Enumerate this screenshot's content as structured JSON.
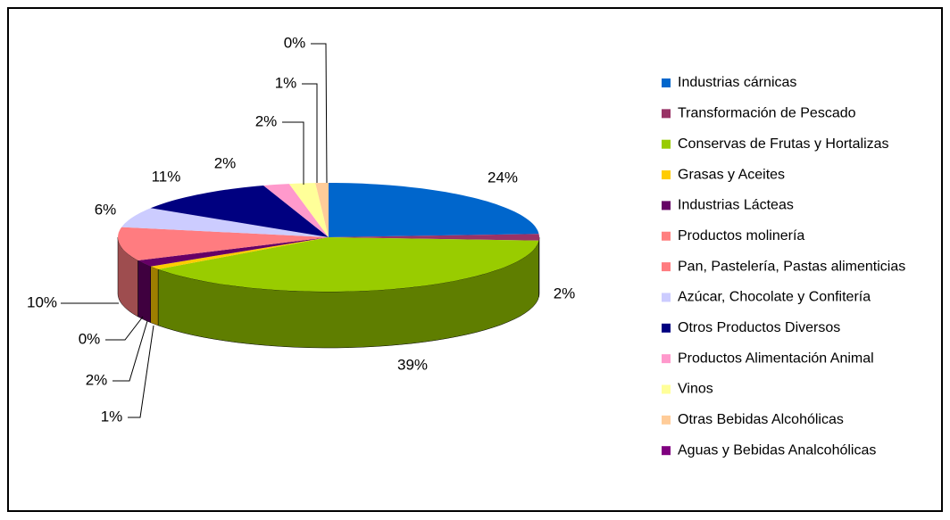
{
  "chart_data": {
    "type": "pie",
    "categories": [
      "Industrias cárnicas",
      "Transformación de Pescado",
      "Conservas de Frutas y Hortalizas",
      "Grasas y Aceites",
      "Industrias Lácteas",
      "Productos molinería",
      "Pan, Pastelería, Pastas alimenticias",
      "Azúcar, Chocolate y Confitería",
      "Otros Productos Diversos",
      "Productos Alimentación Animal",
      "Vinos",
      "Otras Bebidas Alcohólicas",
      "Aguas y Bebidas Analcohólicas"
    ],
    "values": [
      24,
      2,
      39,
      1,
      2,
      0,
      10,
      6,
      11,
      2,
      2,
      1,
      0
    ],
    "value_labels": [
      "24%",
      "2%",
      "39%",
      "1%",
      "2%",
      "0%",
      "10%",
      "6%",
      "11%",
      "2%",
      "2%",
      "1%",
      "0%"
    ],
    "colors": [
      "#0066cc",
      "#993366",
      "#99cc00",
      "#ffcc00",
      "#660066",
      "#ff8080",
      "#ff7c80",
      "#ccccff",
      "#000080",
      "#ff99cc",
      "#ffff99",
      "#ffcc99",
      "#800080"
    ],
    "legend": "right"
  }
}
